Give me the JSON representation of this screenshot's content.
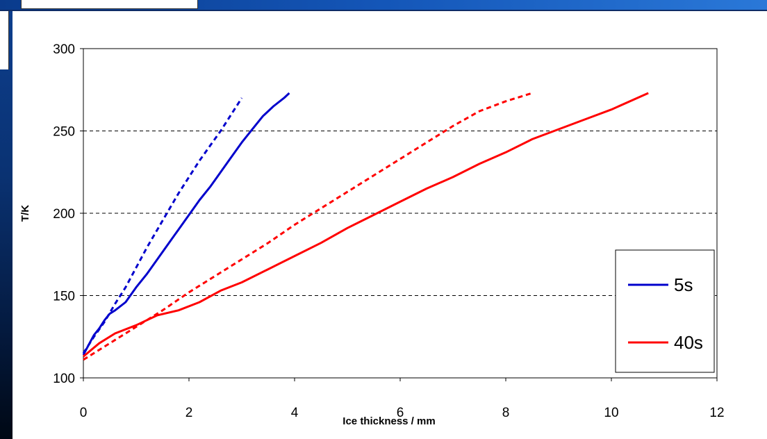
{
  "chart_data": {
    "type": "line",
    "title": "",
    "xlabel": "Ice thickness / mm",
    "ylabel": "T/K",
    "xlim": [
      0,
      12
    ],
    "ylim": [
      100,
      300
    ],
    "xticks": [
      0,
      2,
      4,
      6,
      8,
      10,
      12
    ],
    "yticks": [
      100,
      150,
      200,
      250,
      300
    ],
    "grid": "horizontal-dashed",
    "legend_position": "bottom-right",
    "legend": [
      {
        "label": "5s",
        "color": "#0000cc"
      },
      {
        "label": "40s",
        "color": "#ff0000"
      }
    ],
    "series": [
      {
        "name": "5s",
        "color": "#0000cc",
        "dash": "solid",
        "x": [
          0,
          0.1,
          0.2,
          0.3,
          0.4,
          0.5,
          0.6,
          0.8,
          1.0,
          1.2,
          1.4,
          1.6,
          1.8,
          2.0,
          2.2,
          2.4,
          2.6,
          2.8,
          3.0,
          3.2,
          3.4,
          3.6,
          3.8,
          3.9
        ],
        "y": [
          114,
          120,
          126,
          130,
          135,
          139,
          141,
          146,
          155,
          163,
          172,
          181,
          190,
          199,
          208,
          216,
          225,
          234,
          243,
          251,
          259,
          265,
          270,
          273
        ]
      },
      {
        "name": "5s",
        "color": "#0000cc",
        "dash": "dashed",
        "x": [
          0,
          0.2,
          0.4,
          0.6,
          0.8,
          1.0,
          1.2,
          1.4,
          1.6,
          1.8,
          2.0,
          2.2,
          2.4,
          2.6,
          2.8,
          3.0
        ],
        "y": [
          115,
          125,
          134,
          145,
          155,
          167,
          179,
          190,
          201,
          212,
          222,
          232,
          241,
          250,
          260,
          270
        ]
      },
      {
        "name": "40s",
        "color": "#ff0000",
        "dash": "solid",
        "x": [
          0,
          0.3,
          0.6,
          1.0,
          1.4,
          1.8,
          2.2,
          2.6,
          3.0,
          3.5,
          4.0,
          4.5,
          5.0,
          5.5,
          6.0,
          6.5,
          7.0,
          7.5,
          8.0,
          8.5,
          9.0,
          9.5,
          10.0,
          10.7
        ],
        "y": [
          113,
          121,
          127,
          132,
          138,
          141,
          146,
          153,
          158,
          166,
          174,
          182,
          191,
          199,
          207,
          215,
          222,
          230,
          237,
          245,
          251,
          257,
          263,
          273
        ]
      },
      {
        "name": "40s",
        "color": "#ff0000",
        "dash": "dashed",
        "x": [
          0,
          0.5,
          1.0,
          1.5,
          2.0,
          2.5,
          3.0,
          3.5,
          4.0,
          4.5,
          5.0,
          5.5,
          6.0,
          6.5,
          7.0,
          7.5,
          8.0,
          8.5
        ],
        "y": [
          111,
          121,
          131,
          141,
          152,
          162,
          172,
          182,
          193,
          203,
          213,
          223,
          233,
          243,
          253,
          262,
          268,
          273
        ]
      }
    ]
  }
}
